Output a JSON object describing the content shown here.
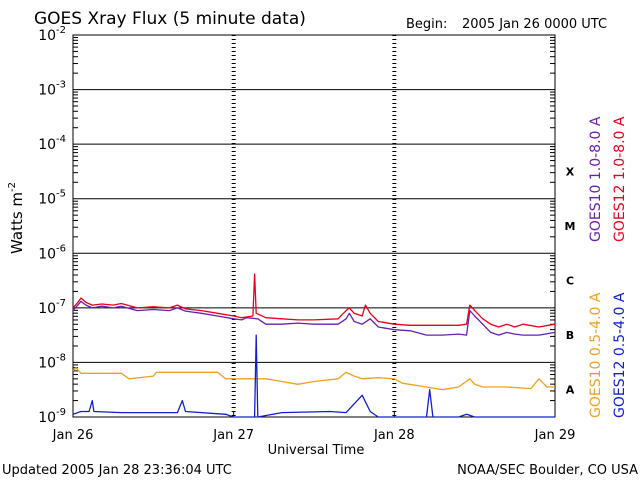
{
  "header": {
    "title": "GOES Xray Flux (5 minute data)",
    "begin_label": "Begin:",
    "begin_value": "2005 Jan 26 0000 UTC"
  },
  "footer": {
    "updated": "Updated 2005 Jan 28 23:36:04 UTC",
    "credit": "NOAA/SEC Boulder, CO USA"
  },
  "colors": {
    "goes10_long": "#6a1fb3",
    "goes12_long": "#e8001c",
    "goes10_short": "#f0a020",
    "goes12_short": "#1020d0",
    "axes": "#000000",
    "background": "#ffffff"
  },
  "chart_data": {
    "type": "line",
    "title": "GOES Xray Flux (5 minute data)",
    "xlabel": "Universal Time",
    "ylabel": "Watts m",
    "ylabel_sup": "-2",
    "yscale": "log",
    "ylim": [
      -9,
      -2
    ],
    "xlim": [
      0,
      3
    ],
    "x_unit": "days since 2005 Jan 26 0000 UTC",
    "x_ticks": [
      {
        "x": 0,
        "label": "Jan 26"
      },
      {
        "x": 1,
        "label": "Jan 27"
      },
      {
        "x": 2,
        "label": "Jan 28"
      },
      {
        "x": 3,
        "label": "Jan 29"
      }
    ],
    "y_ticks": [
      {
        "exp": -2,
        "base": "10",
        "sup": "-2"
      },
      {
        "exp": -3,
        "base": "10",
        "sup": "-3"
      },
      {
        "exp": -4,
        "base": "10",
        "sup": "-4"
      },
      {
        "exp": -5,
        "base": "10",
        "sup": "-5"
      },
      {
        "exp": -6,
        "base": "10",
        "sup": "-6"
      },
      {
        "exp": -7,
        "base": "10",
        "sup": "-7"
      },
      {
        "exp": -8,
        "base": "10",
        "sup": "-8"
      },
      {
        "exp": -9,
        "base": "10",
        "sup": "-9"
      }
    ],
    "flare_classes": [
      {
        "label": "X",
        "exp": -4.5
      },
      {
        "label": "M",
        "exp": -5.5
      },
      {
        "label": "C",
        "exp": -6.5
      },
      {
        "label": "B",
        "exp": -7.5
      },
      {
        "label": "A",
        "exp": -8.5
      }
    ],
    "legend": {
      "long_channel": [
        {
          "label": "GOES12 1.0-8.0 A",
          "color": "#e8001c"
        },
        {
          "label": "GOES10 1.0-8.0 A",
          "color": "#6a1fb3"
        }
      ],
      "short_channel": [
        {
          "label": "GOES12 0.5-4.0 A",
          "color": "#1020d0"
        },
        {
          "label": "GOES10 0.5-4.0 A",
          "color": "#f0a020"
        }
      ]
    },
    "series": [
      {
        "name": "GOES10 1.0-8.0 A",
        "color": "#6a1fb3",
        "points": [
          [
            0,
            -7.05
          ],
          [
            0.03,
            -6.95
          ],
          [
            0.05,
            -6.88
          ],
          [
            0.08,
            -6.95
          ],
          [
            0.12,
            -7.0
          ],
          [
            0.18,
            -6.97
          ],
          [
            0.25,
            -7.0
          ],
          [
            0.3,
            -6.97
          ],
          [
            0.4,
            -7.05
          ],
          [
            0.5,
            -7.03
          ],
          [
            0.6,
            -7.05
          ],
          [
            0.65,
            -7.0
          ],
          [
            0.7,
            -7.06
          ],
          [
            0.8,
            -7.1
          ],
          [
            0.9,
            -7.15
          ],
          [
            1.0,
            -7.2
          ],
          [
            1.05,
            -7.22
          ],
          [
            1.08,
            -7.18
          ],
          [
            1.15,
            -7.2
          ],
          [
            1.2,
            -7.3
          ],
          [
            1.3,
            -7.3
          ],
          [
            1.4,
            -7.28
          ],
          [
            1.5,
            -7.3
          ],
          [
            1.65,
            -7.3
          ],
          [
            1.7,
            -7.2
          ],
          [
            1.72,
            -7.1
          ],
          [
            1.75,
            -7.25
          ],
          [
            1.8,
            -7.3
          ],
          [
            1.85,
            -7.2
          ],
          [
            1.9,
            -7.35
          ],
          [
            2.0,
            -7.4
          ],
          [
            2.1,
            -7.42
          ],
          [
            2.2,
            -7.5
          ],
          [
            2.3,
            -7.5
          ],
          [
            2.4,
            -7.48
          ],
          [
            2.45,
            -7.5
          ],
          [
            2.47,
            -7.05
          ],
          [
            2.5,
            -7.15
          ],
          [
            2.55,
            -7.3
          ],
          [
            2.6,
            -7.45
          ],
          [
            2.65,
            -7.5
          ],
          [
            2.7,
            -7.45
          ],
          [
            2.75,
            -7.48
          ],
          [
            2.8,
            -7.5
          ],
          [
            2.9,
            -7.5
          ],
          [
            3.0,
            -7.45
          ]
        ]
      },
      {
        "name": "GOES12 1.0-8.0 A",
        "color": "#e8001c",
        "points": [
          [
            0,
            -7.0
          ],
          [
            0.03,
            -6.9
          ],
          [
            0.05,
            -6.82
          ],
          [
            0.08,
            -6.9
          ],
          [
            0.12,
            -6.95
          ],
          [
            0.18,
            -6.93
          ],
          [
            0.25,
            -6.95
          ],
          [
            0.3,
            -6.92
          ],
          [
            0.4,
            -7.0
          ],
          [
            0.5,
            -6.98
          ],
          [
            0.6,
            -7.0
          ],
          [
            0.65,
            -6.95
          ],
          [
            0.7,
            -7.02
          ],
          [
            0.8,
            -7.05
          ],
          [
            0.9,
            -7.1
          ],
          [
            1.0,
            -7.15
          ],
          [
            1.05,
            -7.18
          ],
          [
            1.12,
            -7.15
          ],
          [
            1.13,
            -6.38
          ],
          [
            1.14,
            -7.1
          ],
          [
            1.2,
            -7.18
          ],
          [
            1.3,
            -7.2
          ],
          [
            1.4,
            -7.22
          ],
          [
            1.5,
            -7.22
          ],
          [
            1.65,
            -7.2
          ],
          [
            1.7,
            -7.05
          ],
          [
            1.72,
            -7.0
          ],
          [
            1.75,
            -7.1
          ],
          [
            1.8,
            -7.15
          ],
          [
            1.82,
            -6.95
          ],
          [
            1.85,
            -7.1
          ],
          [
            1.9,
            -7.25
          ],
          [
            2.0,
            -7.3
          ],
          [
            2.1,
            -7.32
          ],
          [
            2.2,
            -7.32
          ],
          [
            2.3,
            -7.32
          ],
          [
            2.4,
            -7.32
          ],
          [
            2.45,
            -7.3
          ],
          [
            2.47,
            -6.95
          ],
          [
            2.5,
            -7.05
          ],
          [
            2.55,
            -7.2
          ],
          [
            2.6,
            -7.3
          ],
          [
            2.65,
            -7.35
          ],
          [
            2.7,
            -7.3
          ],
          [
            2.75,
            -7.35
          ],
          [
            2.8,
            -7.3
          ],
          [
            2.9,
            -7.35
          ],
          [
            3.0,
            -7.3
          ]
        ]
      },
      {
        "name": "GOES10 0.5-4.0 A",
        "color": "#f0a020",
        "points": [
          [
            0,
            -8.15
          ],
          [
            0.02,
            -8.1
          ],
          [
            0.05,
            -8.2
          ],
          [
            0.3,
            -8.2
          ],
          [
            0.35,
            -8.3
          ],
          [
            0.5,
            -8.25
          ],
          [
            0.52,
            -8.18
          ],
          [
            0.9,
            -8.18
          ],
          [
            0.95,
            -8.3
          ],
          [
            1.2,
            -8.3
          ],
          [
            1.3,
            -8.35
          ],
          [
            1.4,
            -8.4
          ],
          [
            1.5,
            -8.35
          ],
          [
            1.65,
            -8.3
          ],
          [
            1.7,
            -8.18
          ],
          [
            1.75,
            -8.25
          ],
          [
            1.8,
            -8.3
          ],
          [
            1.9,
            -8.28
          ],
          [
            2.0,
            -8.3
          ],
          [
            2.05,
            -8.38
          ],
          [
            2.2,
            -8.45
          ],
          [
            2.3,
            -8.5
          ],
          [
            2.4,
            -8.45
          ],
          [
            2.47,
            -8.3
          ],
          [
            2.5,
            -8.4
          ],
          [
            2.55,
            -8.45
          ],
          [
            2.7,
            -8.45
          ],
          [
            2.85,
            -8.48
          ],
          [
            2.9,
            -8.3
          ],
          [
            2.95,
            -8.45
          ],
          [
            3.0,
            -8.45
          ]
        ]
      },
      {
        "name": "GOES12 0.5-4.0 A",
        "color": "#1020d0",
        "points": [
          [
            0,
            -8.95
          ],
          [
            0.05,
            -8.9
          ],
          [
            0.1,
            -8.9
          ],
          [
            0.12,
            -8.7
          ],
          [
            0.13,
            -8.9
          ],
          [
            0.3,
            -8.92
          ],
          [
            0.65,
            -8.92
          ],
          [
            0.68,
            -8.7
          ],
          [
            0.7,
            -8.9
          ],
          [
            0.95,
            -8.95
          ],
          [
            1.0,
            -9.0
          ],
          [
            1.13,
            -9.0
          ],
          [
            1.14,
            -7.5
          ],
          [
            1.15,
            -9.0
          ],
          [
            1.3,
            -8.92
          ],
          [
            1.6,
            -8.9
          ],
          [
            1.7,
            -8.92
          ],
          [
            1.8,
            -8.6
          ],
          [
            1.85,
            -8.9
          ],
          [
            1.9,
            -9.0
          ],
          [
            2.2,
            -9.0
          ],
          [
            2.22,
            -8.5
          ],
          [
            2.24,
            -9.0
          ],
          [
            2.4,
            -9.0
          ],
          [
            2.45,
            -8.95
          ],
          [
            2.5,
            -9.0
          ],
          [
            3.0,
            -9.0
          ]
        ]
      }
    ]
  }
}
